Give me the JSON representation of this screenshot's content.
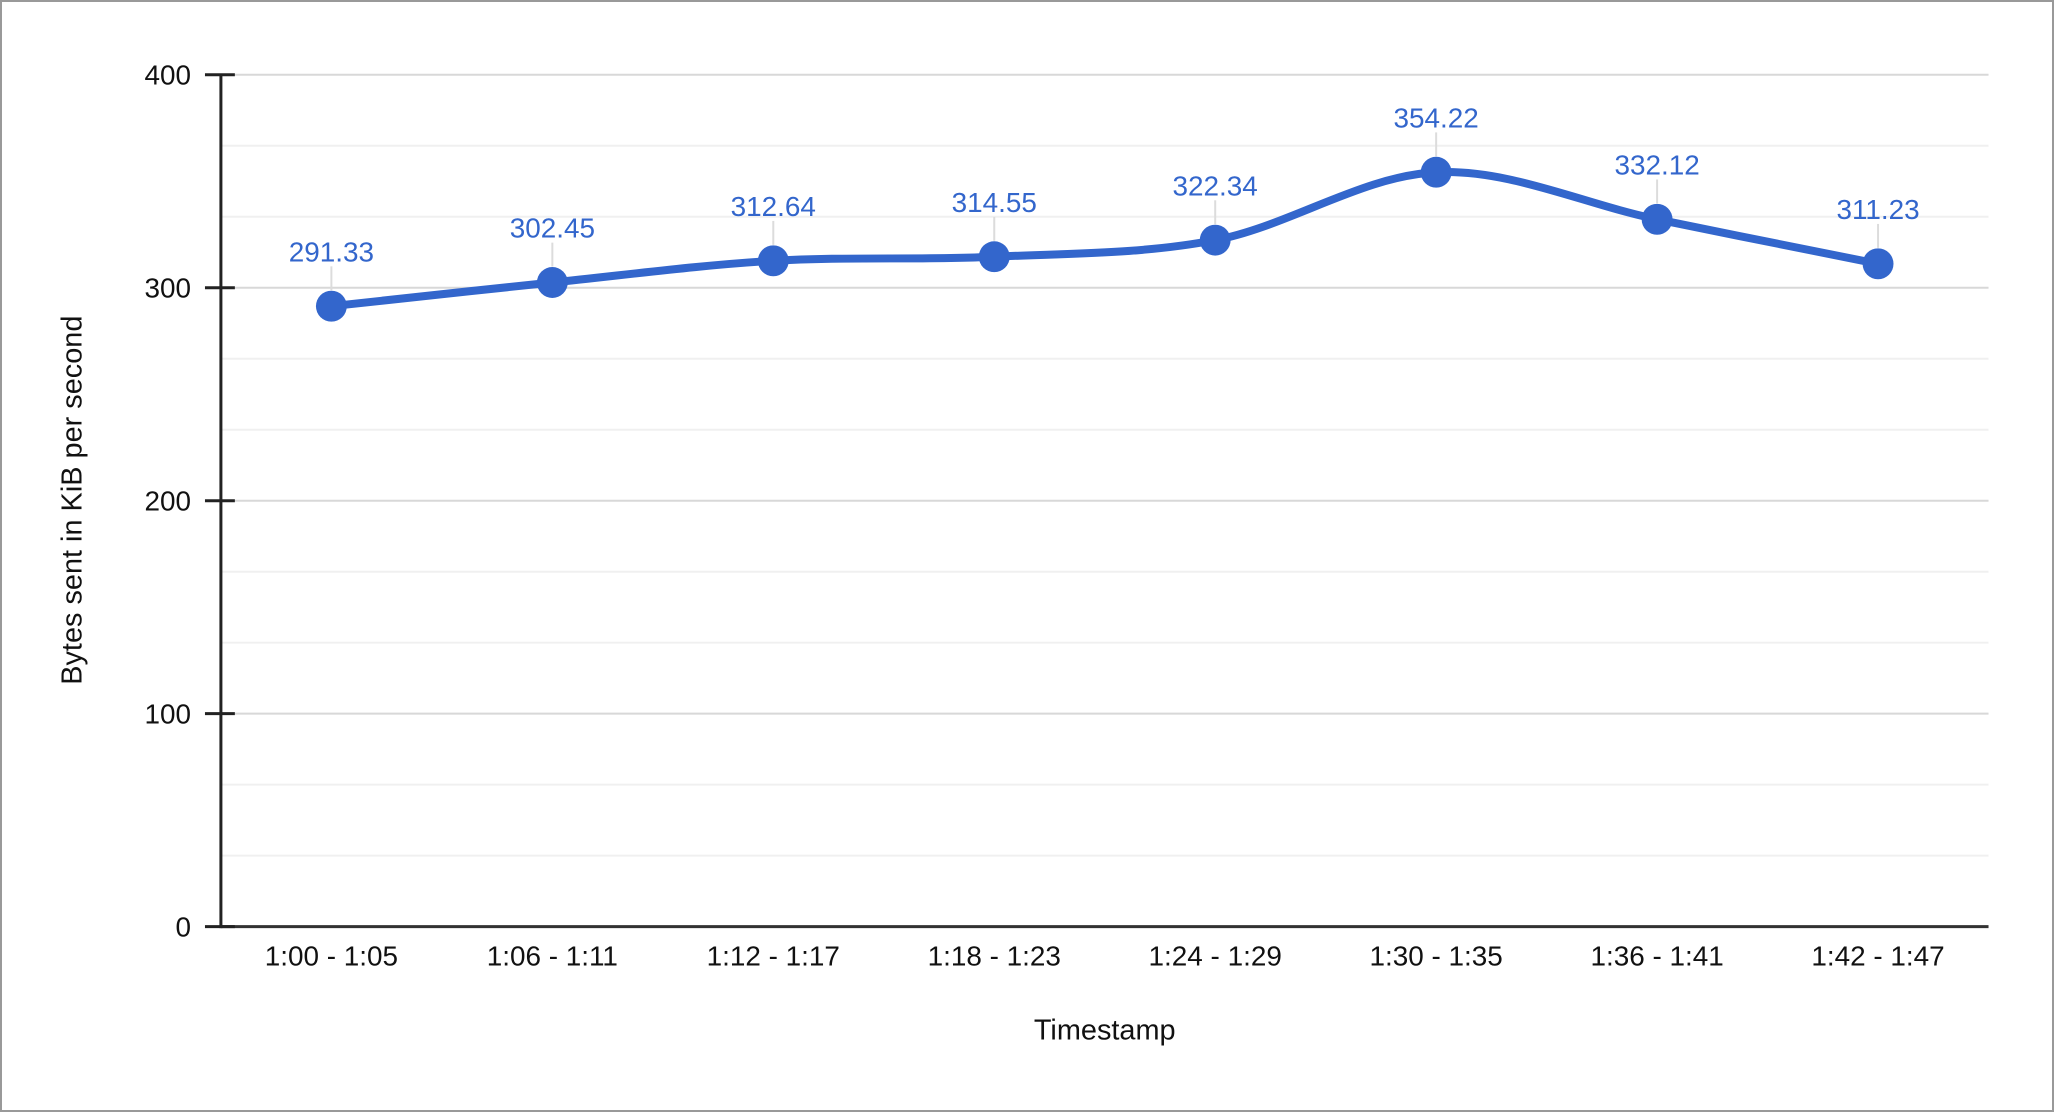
{
  "chart_data": {
    "type": "line",
    "title": "",
    "categories": [
      "1:00 - 1:05",
      "1:06 - 1:11",
      "1:12 - 1:17",
      "1:18 - 1:23",
      "1:24 - 1:29",
      "1:30 - 1:35",
      "1:36 - 1:41",
      "1:42 - 1:47"
    ],
    "series": [
      {
        "values": [
          291.33,
          302.45,
          312.64,
          314.55,
          322.34,
          354.22,
          332.12,
          311.23
        ],
        "point_labels": [
          "291.33",
          "302.45",
          "312.64",
          "314.55",
          "322.34",
          "354.22",
          "332.12",
          "311.23"
        ]
      }
    ],
    "xlabel": "Timestamp",
    "ylabel": "Bytes sent in KiB per second",
    "yticks": [
      0,
      100,
      200,
      300,
      400
    ],
    "ytick_labels": [
      "0",
      "100",
      "200",
      "300",
      "400"
    ],
    "ylim": [
      0,
      400
    ],
    "curve": "smooth",
    "legend": "none",
    "grid": {
      "major_on": true,
      "minor_divisions": 3,
      "major_color": "#d8d8d8",
      "minor_color": "#f0f0f0",
      "baseline_color": "#333333"
    },
    "colors": {
      "series": "#3366cc",
      "point_label": "#3366cc",
      "axis_text": "#111111",
      "axis_line": "#222222",
      "leader_stem": "#dcdcdc",
      "background": "#ffffff",
      "frame_border": "#999999"
    }
  }
}
